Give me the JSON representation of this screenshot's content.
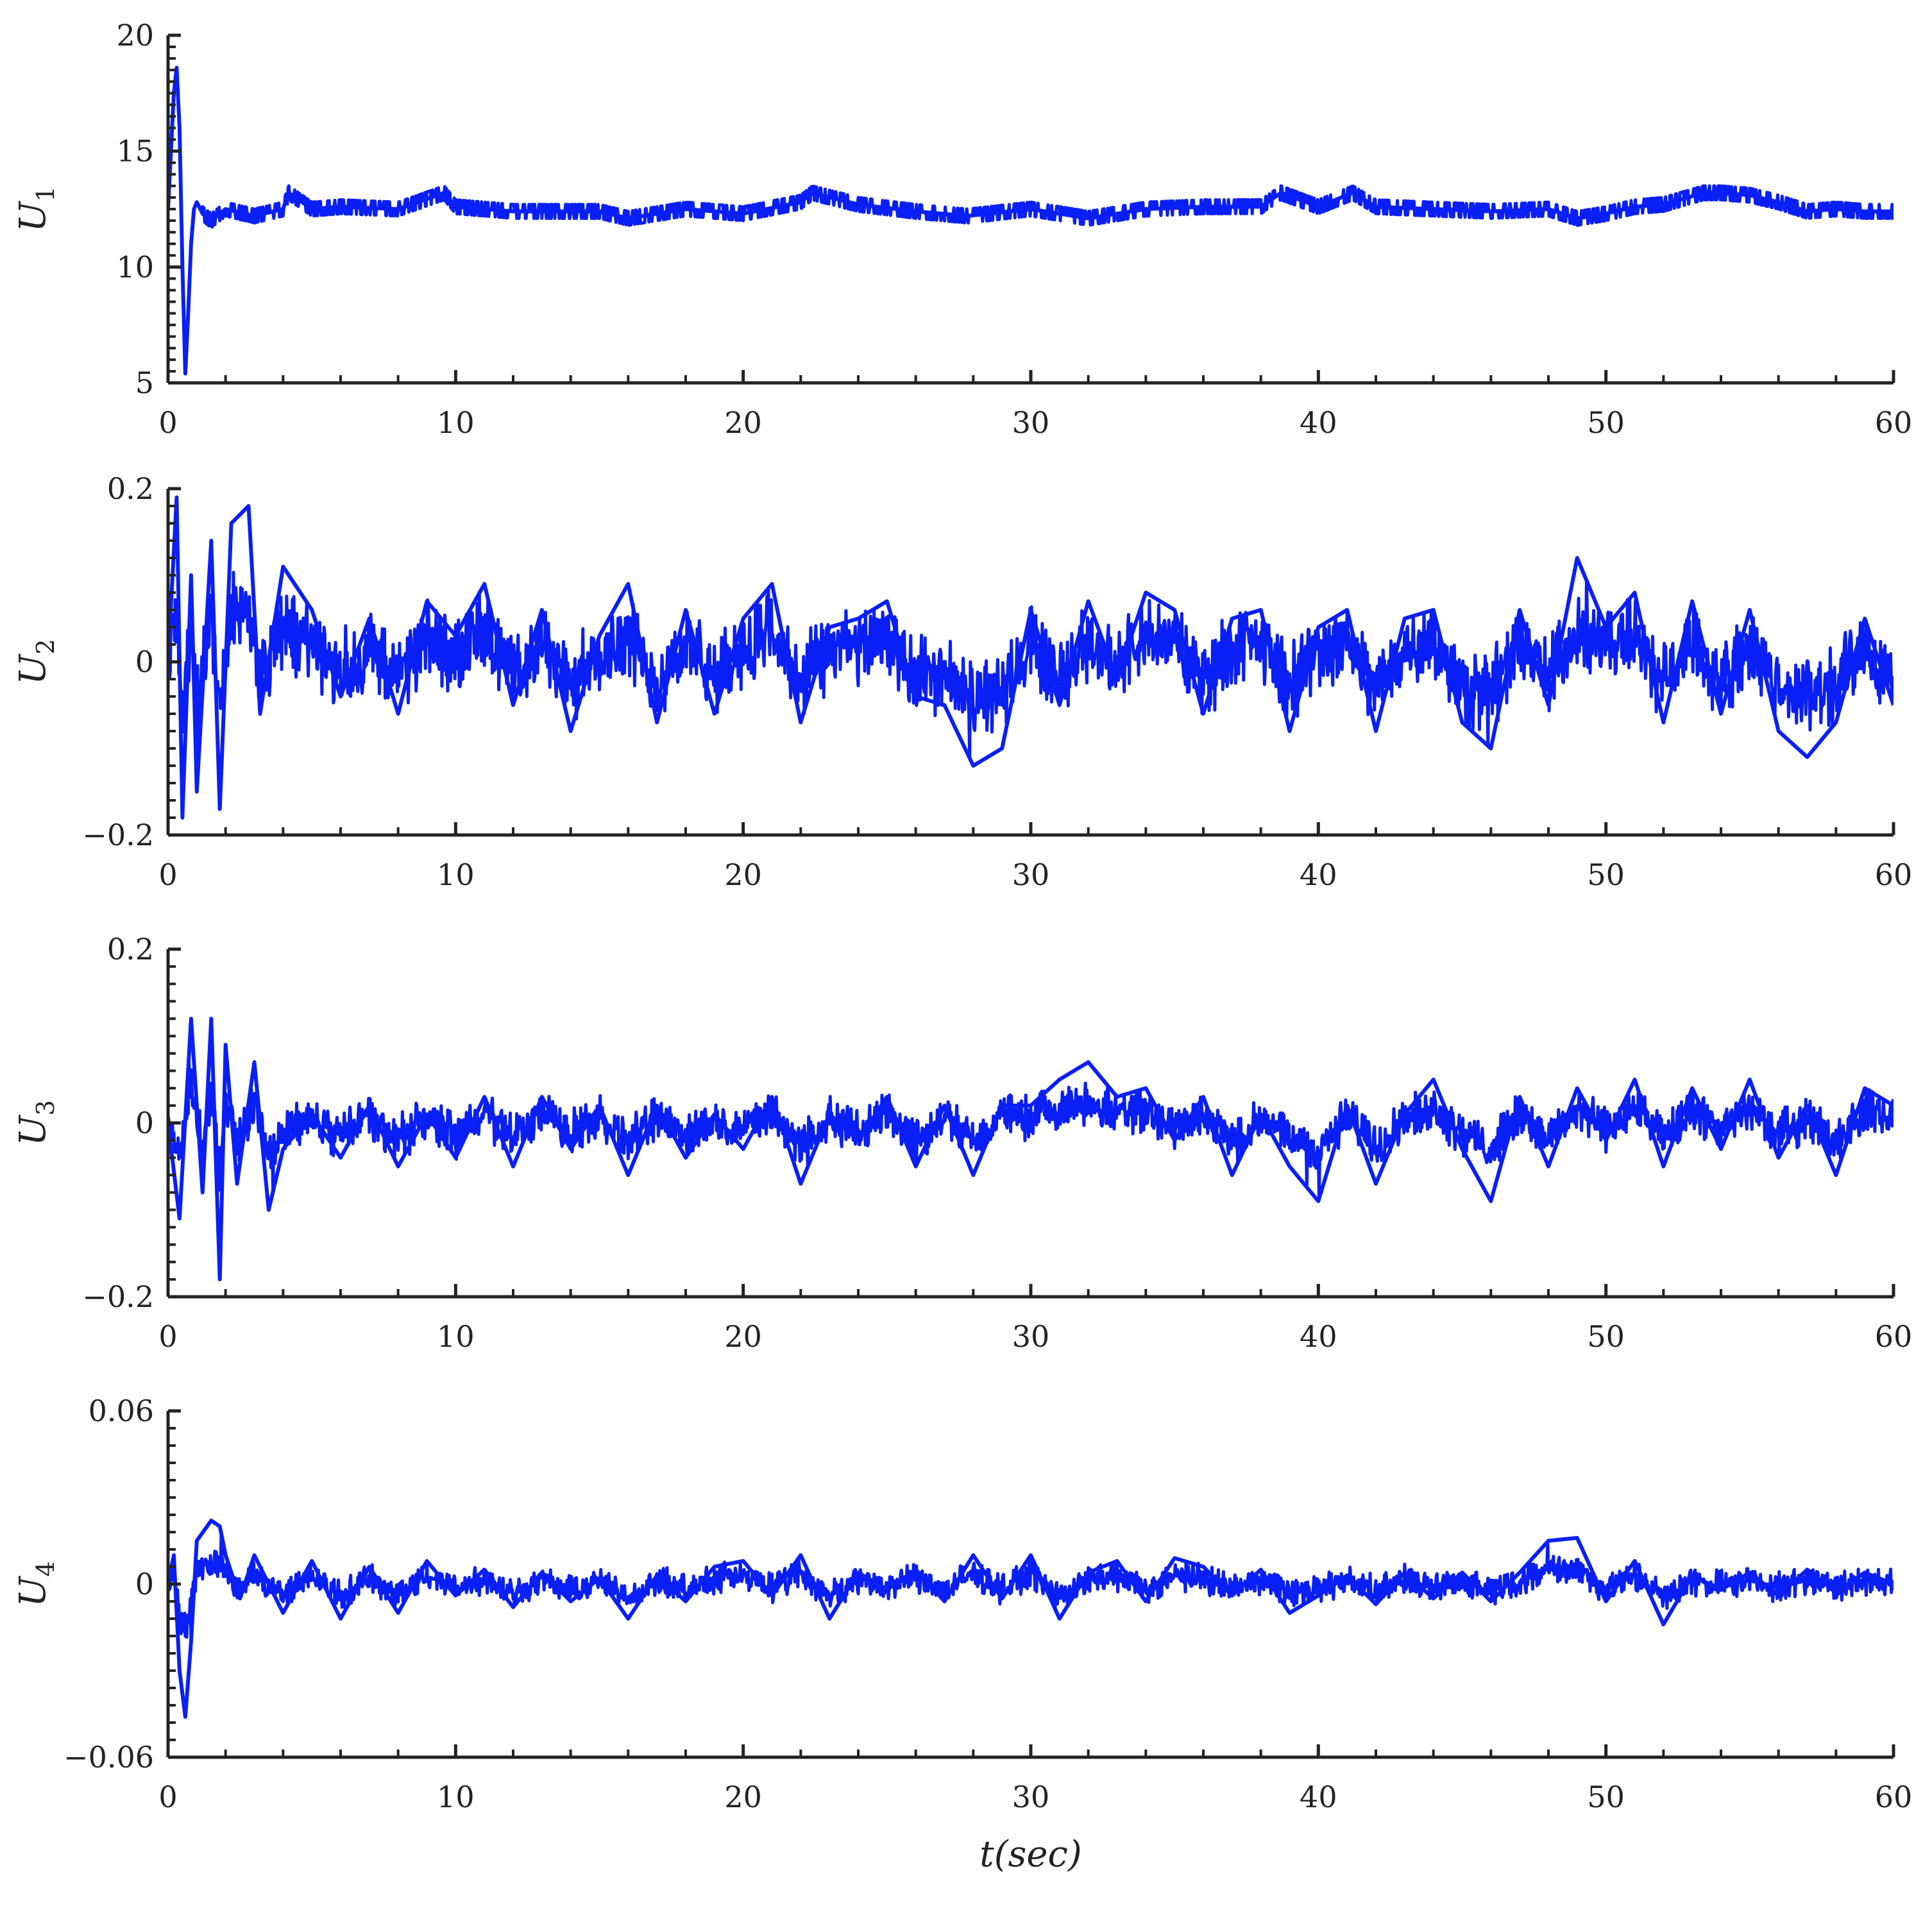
{
  "colors": {
    "line": "#0a1ff5",
    "axis": "#222222",
    "background": "#ffffff"
  },
  "chart_data": [
    {
      "type": "line",
      "ylabel_symbol": "U",
      "ylabel_sub": "1",
      "xlim": [
        0,
        60
      ],
      "ylim": [
        5,
        20
      ],
      "x_ticks": [
        0,
        10,
        20,
        30,
        40,
        50,
        60
      ],
      "x_tick_labels": [
        "0",
        "10",
        "20",
        "30",
        "40",
        "50",
        "60"
      ],
      "y_ticks": [
        5,
        10,
        15,
        20
      ],
      "y_tick_labels": [
        "5",
        "10",
        "15",
        "20"
      ],
      "grid": false,
      "series": [
        {
          "x": [
            0,
            0.1,
            0.2,
            0.3,
            0.4,
            0.5,
            0.6,
            0.7,
            0.8,
            0.9,
            1.0,
            1.2,
            1.5,
            2,
            3,
            4,
            4.2,
            5,
            6,
            8,
            9.6,
            10,
            12,
            15,
            16,
            18,
            20,
            22,
            22.4,
            24,
            26,
            27.8,
            30,
            32,
            34,
            36,
            38,
            38.7,
            40,
            41.2,
            42,
            44,
            46,
            48,
            49,
            50,
            51,
            52,
            53.4,
            54,
            55,
            56,
            57,
            58,
            59,
            60
          ],
          "y": [
            12.5,
            15,
            17.5,
            18.6,
            16,
            10,
            5.4,
            8,
            11,
            12.5,
            12.8,
            12.3,
            12,
            12.5,
            12.2,
            12.5,
            13.2,
            12.5,
            12.6,
            12.5,
            13.2,
            12.6,
            12.4,
            12.4,
            12.1,
            12.5,
            12.3,
            12.8,
            13.2,
            12.7,
            12.4,
            12.2,
            12.5,
            12.1,
            12.5,
            12.6,
            12.6,
            13.2,
            12.6,
            13.2,
            12.6,
            12.5,
            12.4,
            12.5,
            12.1,
            12.3,
            12.6,
            12.7,
            13.2,
            13.2,
            13.1,
            12.8,
            12.4,
            12.5,
            12.4,
            12.4
          ]
        }
      ]
    },
    {
      "type": "line",
      "ylabel_symbol": "U",
      "ylabel_sub": "2",
      "xlim": [
        0,
        60
      ],
      "ylim": [
        -0.2,
        0.2
      ],
      "x_ticks": [
        0,
        10,
        20,
        30,
        40,
        50,
        60
      ],
      "x_tick_labels": [
        "0",
        "10",
        "20",
        "30",
        "40",
        "50",
        "60"
      ],
      "y_ticks": [
        -0.2,
        0,
        0.2
      ],
      "y_tick_labels": [
        "−0.2",
        "0",
        "0.2"
      ],
      "grid": false,
      "series": [
        {
          "x": [
            0,
            0.3,
            0.5,
            0.8,
            1.0,
            1.5,
            1.8,
            2.2,
            2.8,
            3.2,
            4,
            5,
            6,
            7,
            8,
            9,
            10,
            11,
            12,
            13,
            14,
            15,
            16,
            17,
            18,
            19,
            20,
            21,
            22,
            23,
            24,
            25,
            26,
            27,
            28,
            29,
            30,
            31,
            32,
            33,
            34,
            35,
            36,
            37,
            38,
            39,
            40,
            41,
            42,
            43,
            44,
            45,
            46,
            47,
            48,
            49,
            50,
            51,
            52,
            53,
            54,
            55,
            56,
            57,
            58,
            59,
            60
          ],
          "y": [
            0,
            0.19,
            -0.18,
            0.1,
            -0.15,
            0.14,
            -0.17,
            0.16,
            0.18,
            -0.06,
            0.11,
            0.06,
            -0.04,
            0.05,
            -0.06,
            0.07,
            0.03,
            0.09,
            -0.05,
            0.06,
            -0.08,
            0.03,
            0.09,
            -0.07,
            0.06,
            -0.06,
            0.05,
            0.09,
            -0.07,
            0.04,
            0.05,
            0.07,
            -0.04,
            -0.05,
            -0.12,
            -0.1,
            0.06,
            -0.05,
            0.07,
            -0.02,
            0.08,
            0.06,
            -0.06,
            0.05,
            0.06,
            -0.08,
            0.04,
            0.06,
            -0.08,
            0.05,
            0.06,
            -0.07,
            -0.1,
            0.06,
            -0.05,
            0.12,
            0.04,
            0.08,
            -0.07,
            0.07,
            -0.06,
            0.06,
            -0.08,
            -0.11,
            -0.07,
            0.05,
            -0.05
          ]
        }
      ]
    },
    {
      "type": "line",
      "ylabel_symbol": "U",
      "ylabel_sub": "3",
      "xlim": [
        0,
        60
      ],
      "ylim": [
        -0.2,
        0.2
      ],
      "x_ticks": [
        0,
        10,
        20,
        30,
        40,
        50,
        60
      ],
      "x_tick_labels": [
        "0",
        "10",
        "20",
        "30",
        "40",
        "50",
        "60"
      ],
      "y_ticks": [
        -0.2,
        0,
        0.2
      ],
      "y_tick_labels": [
        "−0.2",
        "0",
        "0.2"
      ],
      "grid": false,
      "series": [
        {
          "x": [
            0,
            0.4,
            0.8,
            1.2,
            1.5,
            1.8,
            2.0,
            2.4,
            3.0,
            3.5,
            4,
            5,
            6,
            7,
            8,
            9,
            10,
            11,
            12,
            13,
            14,
            15,
            16,
            17,
            18,
            19,
            20,
            21,
            22,
            23,
            24,
            25,
            26,
            27,
            28,
            29,
            30,
            31,
            32,
            33,
            34,
            35,
            36,
            37,
            38,
            39,
            40,
            41,
            42,
            43,
            44,
            45,
            46,
            47,
            48,
            49,
            50,
            51,
            52,
            53,
            54,
            55,
            56,
            57,
            58,
            59,
            60
          ],
          "y": [
            0,
            -0.11,
            0.12,
            -0.08,
            0.12,
            -0.18,
            0.09,
            -0.07,
            0.07,
            -0.1,
            -0.03,
            0.01,
            -0.04,
            0.02,
            -0.05,
            0.01,
            -0.04,
            0.03,
            -0.05,
            0.03,
            -0.03,
            0.02,
            -0.06,
            0.02,
            -0.04,
            0.01,
            -0.03,
            0.03,
            -0.07,
            0.01,
            -0.02,
            0.03,
            -0.05,
            0.02,
            -0.06,
            0.02,
            0.02,
            0.05,
            0.07,
            0.03,
            0.04,
            -0.02,
            0.03,
            -0.06,
            0.01,
            -0.05,
            -0.09,
            0.02,
            -0.07,
            0.01,
            0.05,
            -0.03,
            -0.09,
            0.03,
            -0.05,
            0.04,
            -0.02,
            0.05,
            -0.05,
            0.04,
            -0.03,
            0.05,
            -0.04,
            0.02,
            -0.06,
            0.04,
            0.02
          ]
        }
      ]
    },
    {
      "type": "line",
      "ylabel_symbol": "U",
      "ylabel_sub": "4",
      "xlim": [
        0,
        60
      ],
      "ylim": [
        -0.06,
        0.06
      ],
      "x_ticks": [
        0,
        10,
        20,
        30,
        40,
        50,
        60
      ],
      "x_tick_labels": [
        "0",
        "10",
        "20",
        "30",
        "40",
        "50",
        "60"
      ],
      "y_ticks": [
        -0.06,
        0,
        0.06
      ],
      "y_tick_labels": [
        "−0.06",
        "0",
        "0.06"
      ],
      "grid": false,
      "xlabel_symbol": "t",
      "xlabel_rest": "(sec)",
      "series": [
        {
          "x": [
            0,
            0.2,
            0.4,
            0.6,
            0.8,
            1.0,
            1.5,
            1.8,
            2.0,
            2.5,
            3,
            4,
            5,
            6,
            7,
            8,
            9,
            10,
            11,
            12,
            13,
            14,
            15,
            16,
            17,
            18,
            19,
            20,
            21,
            22,
            23,
            24,
            25,
            26,
            27,
            28,
            29,
            30,
            31,
            32,
            33,
            34,
            35,
            36,
            37,
            38,
            39,
            40,
            41,
            42,
            43,
            44,
            45,
            46,
            47,
            48,
            49,
            50,
            51,
            52,
            53,
            54,
            55,
            56,
            57,
            58,
            59,
            60
          ],
          "y": [
            0,
            0.01,
            -0.03,
            -0.046,
            -0.02,
            0.015,
            0.022,
            0.02,
            0.01,
            -0.005,
            0.01,
            -0.01,
            0.008,
            -0.012,
            0.006,
            -0.01,
            0.008,
            -0.004,
            0.005,
            -0.008,
            0.004,
            -0.006,
            0.002,
            -0.012,
            0.003,
            -0.006,
            0.006,
            0.008,
            -0.004,
            0.01,
            -0.012,
            0.004,
            -0.002,
            0.005,
            -0.006,
            0.01,
            -0.005,
            0.01,
            -0.012,
            0.004,
            0.008,
            -0.006,
            0.009,
            0.006,
            -0.004,
            0.005,
            -0.01,
            -0.004,
            0.003,
            -0.007,
            0.004,
            -0.005,
            0.004,
            -0.006,
            0.004,
            0.015,
            0.016,
            -0.006,
            0.008,
            -0.014,
            0.003,
            -0.002,
            0.004,
            -0.004,
            0.005,
            -0.003,
            0.004,
            0
          ]
        }
      ]
    }
  ]
}
